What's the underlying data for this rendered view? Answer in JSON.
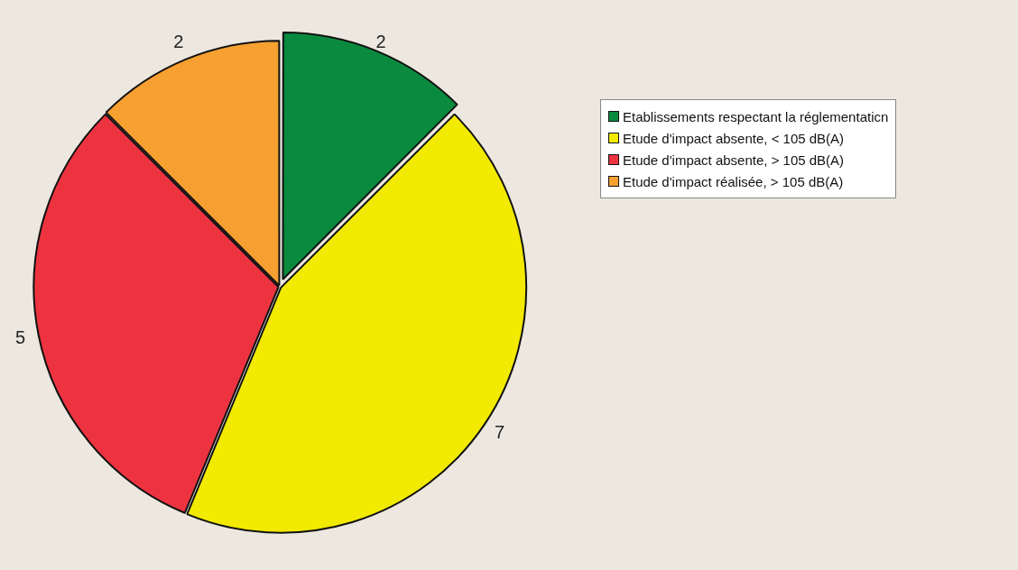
{
  "chart_data": {
    "type": "pie",
    "categories": [
      "Etablissements respectant la réglementaticn",
      "Etude d'impact absente, < 105 dB(A)",
      "Etude d'impact absente, > 105 dB(A)",
      "Etude d'impact réalisée, > 105 dB(A)"
    ],
    "values": [
      2,
      7,
      5,
      2
    ],
    "colors": [
      "#0a8a3e",
      "#f2ea00",
      "#ee3340",
      "#f5a030"
    ],
    "data_labels": true,
    "legend": "top right"
  }
}
